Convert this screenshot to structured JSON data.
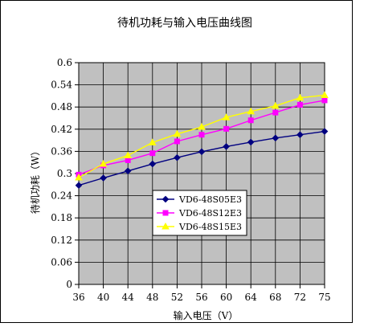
{
  "chart_data": {
    "type": "line",
    "title": "待机功耗与输入电压曲线图",
    "xlabel": "输入电压（V）",
    "ylabel": "待机功耗（W）",
    "categories": [
      "36",
      "40",
      "44",
      "48",
      "52",
      "56",
      "60",
      "64",
      "68",
      "72",
      "75"
    ],
    "yticks": [
      "0",
      "0.06",
      "0.12",
      "0.18",
      "0.24",
      "0.3",
      "0.36",
      "0.42",
      "0.48",
      "0.54",
      "0.6"
    ],
    "ylim": [
      0,
      0.6
    ],
    "grid": true,
    "legend_position": "center-left",
    "plot_background": "#c0c0c0",
    "series": [
      {
        "name": "VD6-48S05E3",
        "color": "#000080",
        "marker": "diamond",
        "values": [
          0.268,
          0.288,
          0.307,
          0.326,
          0.343,
          0.359,
          0.373,
          0.385,
          0.396,
          0.405,
          0.414
        ]
      },
      {
        "name": "VD6-48S12E3",
        "color": "#ff00ff",
        "marker": "square",
        "values": [
          0.297,
          0.322,
          0.336,
          0.355,
          0.387,
          0.405,
          0.421,
          0.444,
          0.465,
          0.486,
          0.498
        ]
      },
      {
        "name": "VD6-48S15E3",
        "color": "#ffff00",
        "marker": "triangle",
        "values": [
          0.289,
          0.326,
          0.349,
          0.384,
          0.407,
          0.426,
          0.452,
          0.468,
          0.483,
          0.505,
          0.512
        ]
      }
    ]
  }
}
